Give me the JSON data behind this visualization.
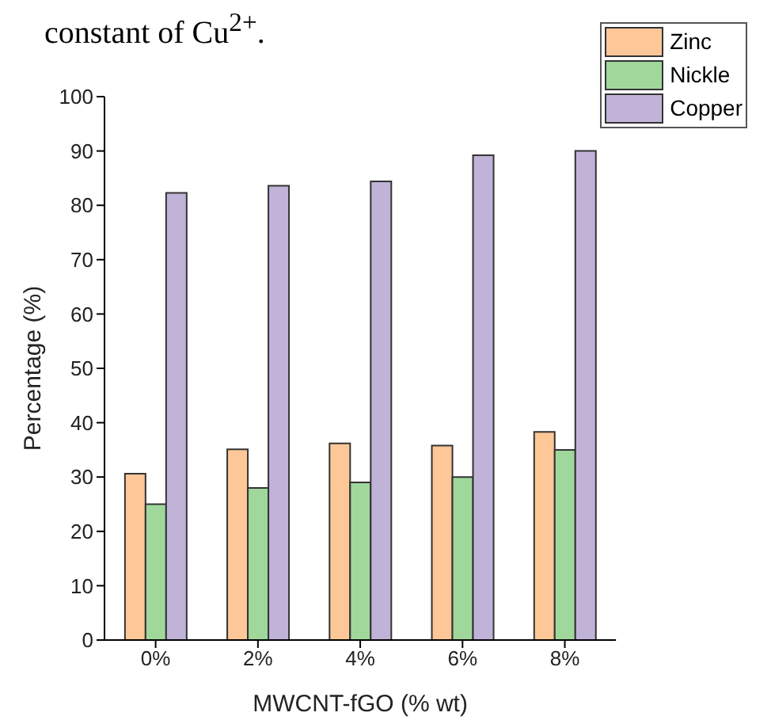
{
  "chart_data": {
    "type": "bar",
    "xlabel": "MWCNT-fGO (% wt)",
    "ylabel": "Percentage (%)",
    "annotations": [
      "constant of Cu$^{2+}$."
    ],
    "categories": [
      "0%",
      "2%",
      "4%",
      "6%",
      "8%"
    ],
    "series": [
      {
        "name": "Zinc",
        "color": "#fdc797",
        "values": [
          30.6,
          35.1,
          36.2,
          35.8,
          38.3
        ]
      },
      {
        "name": "Nickle",
        "color": "#a0d89c",
        "values": [
          25,
          28,
          29,
          30,
          35
        ]
      },
      {
        "name": "Copper",
        "color": "#c1b3d8",
        "values": [
          82.3,
          83.6,
          84.4,
          89.2,
          90.0
        ]
      }
    ],
    "ylim": [
      0,
      100
    ],
    "yticks": [
      0,
      10,
      20,
      30,
      40,
      50,
      60,
      70,
      80,
      90,
      100
    ],
    "grid": false,
    "legend": "top right"
  }
}
